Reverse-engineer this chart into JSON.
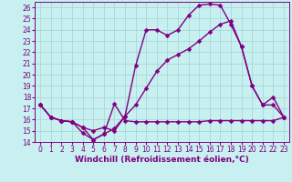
{
  "xlabel": "Windchill (Refroidissement éolien,°C)",
  "background_color": "#c8f0f0",
  "line_color": "#800080",
  "grid_color": "#a8d8d8",
  "xlim": [
    -0.5,
    23.5
  ],
  "ylim": [
    14,
    26.5
  ],
  "xticks": [
    0,
    1,
    2,
    3,
    4,
    5,
    6,
    7,
    8,
    9,
    10,
    11,
    12,
    13,
    14,
    15,
    16,
    17,
    18,
    19,
    20,
    21,
    22,
    23
  ],
  "yticks": [
    14,
    15,
    16,
    17,
    18,
    19,
    20,
    21,
    22,
    23,
    24,
    25,
    26
  ],
  "line1_x": [
    0,
    1,
    2,
    3,
    4,
    5,
    6,
    7,
    8,
    9,
    10,
    11,
    12,
    13,
    14,
    15,
    16,
    17,
    18,
    19,
    20,
    21,
    22,
    23
  ],
  "line1_y": [
    17.3,
    16.2,
    15.9,
    15.8,
    14.8,
    14.2,
    14.7,
    17.4,
    15.9,
    15.8,
    15.8,
    15.8,
    15.8,
    15.8,
    15.8,
    15.8,
    15.9,
    15.9,
    15.9,
    15.9,
    15.9,
    15.9,
    15.9,
    16.2
  ],
  "line2_x": [
    0,
    1,
    2,
    3,
    4,
    5,
    6,
    7,
    8,
    9,
    10,
    11,
    12,
    13,
    14,
    15,
    16,
    17,
    18,
    19,
    20,
    21,
    22,
    23
  ],
  "line2_y": [
    17.3,
    16.2,
    15.9,
    15.8,
    15.3,
    15.0,
    15.3,
    15.0,
    16.3,
    17.3,
    18.8,
    20.3,
    21.3,
    21.8,
    22.3,
    23.0,
    23.8,
    24.5,
    24.8,
    22.5,
    19.0,
    17.3,
    17.3,
    16.2
  ],
  "line3_x": [
    0,
    1,
    2,
    3,
    4,
    5,
    6,
    7,
    8,
    9,
    10,
    11,
    12,
    13,
    14,
    15,
    16,
    17,
    18,
    19,
    20,
    21,
    22,
    23
  ],
  "line3_y": [
    17.3,
    16.2,
    15.9,
    15.8,
    15.3,
    14.2,
    14.7,
    15.2,
    16.3,
    20.8,
    24.0,
    24.0,
    23.5,
    24.0,
    25.3,
    26.2,
    26.3,
    26.2,
    24.5,
    22.5,
    19.0,
    17.3,
    18.0,
    16.2
  ],
  "marker": "D",
  "marker_size": 2.5,
  "line_width": 1.0,
  "xlabel_fontsize": 6.5,
  "tick_fontsize": 5.5
}
